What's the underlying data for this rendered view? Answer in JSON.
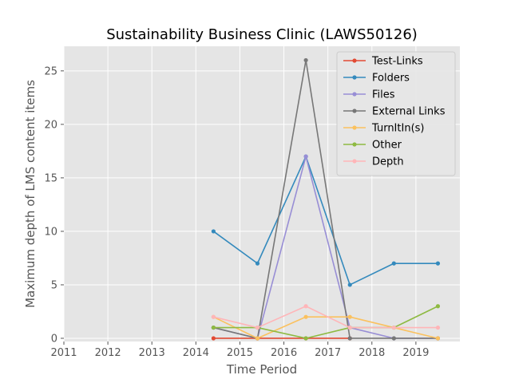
{
  "chart_data": {
    "type": "line",
    "title": "Sustainability Business Clinic (LAWS50126)",
    "xlabel": "Time Period",
    "ylabel": "Maximum depth of LMS content items",
    "xlim": [
      2011,
      2020
    ],
    "ylim": [
      -0.3,
      27.3
    ],
    "xticks": [
      2011,
      2012,
      2013,
      2014,
      2015,
      2016,
      2017,
      2018,
      2019
    ],
    "yticks": [
      0,
      5,
      10,
      15,
      20,
      25
    ],
    "grid": true,
    "legend_position": "top-right",
    "series": [
      {
        "name": "Test-Links",
        "color": "#E24A33",
        "points": [
          [
            2014.4,
            0
          ],
          [
            2015.4,
            0
          ],
          [
            2016.5,
            0
          ],
          [
            2017.5,
            0
          ]
        ]
      },
      {
        "name": "Folders",
        "color": "#348ABD",
        "points": [
          [
            2014.4,
            10
          ],
          [
            2015.4,
            7
          ],
          [
            2016.5,
            17
          ],
          [
            2017.5,
            5
          ],
          [
            2018.5,
            7
          ],
          [
            2019.5,
            7
          ]
        ]
      },
      {
        "name": "Files",
        "color": "#988ED5",
        "points": [
          [
            2014.4,
            1
          ],
          [
            2015.4,
            0
          ],
          [
            2016.5,
            17
          ],
          [
            2017.5,
            1
          ],
          [
            2018.5,
            0
          ],
          [
            2019.5,
            0
          ]
        ]
      },
      {
        "name": "External Links",
        "color": "#777777",
        "points": [
          [
            2014.4,
            1
          ],
          [
            2015.4,
            0
          ],
          [
            2016.5,
            26
          ],
          [
            2017.5,
            0
          ],
          [
            2018.5,
            0
          ],
          [
            2019.5,
            0
          ]
        ]
      },
      {
        "name": "TurnItIn(s)",
        "color": "#FBC15E",
        "points": [
          [
            2014.4,
            2
          ],
          [
            2015.4,
            0
          ],
          [
            2016.5,
            2
          ],
          [
            2017.5,
            2
          ],
          [
            2018.5,
            1
          ],
          [
            2019.5,
            0
          ]
        ]
      },
      {
        "name": "Other",
        "color": "#8EBA42",
        "points": [
          [
            2014.4,
            1
          ],
          [
            2015.4,
            1
          ],
          [
            2016.5,
            0
          ],
          [
            2017.5,
            1
          ],
          [
            2018.5,
            1
          ],
          [
            2019.5,
            3
          ]
        ]
      },
      {
        "name": "Depth",
        "color": "#FFB5B8",
        "points": [
          [
            2014.4,
            2
          ],
          [
            2015.4,
            1
          ],
          [
            2016.5,
            3
          ],
          [
            2017.5,
            1
          ],
          [
            2018.5,
            1
          ],
          [
            2019.5,
            1
          ]
        ]
      }
    ]
  }
}
